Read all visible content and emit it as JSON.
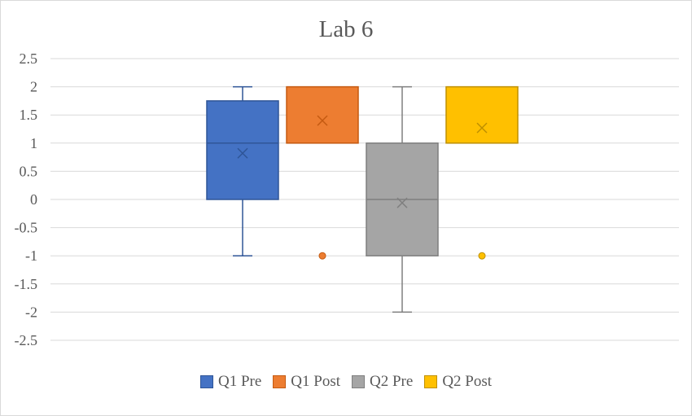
{
  "chart_data": {
    "type": "boxplot",
    "title": "Lab 6",
    "xlabel": "",
    "ylabel": "",
    "ylim": [
      -2.5,
      2.5
    ],
    "yticks": [
      2.5,
      2,
      1.5,
      1,
      0.5,
      0,
      -0.5,
      -1,
      -1.5,
      -2,
      -2.5
    ],
    "ytick_labels": [
      "2.5",
      "2",
      "1.5",
      "1",
      "0.5",
      "0",
      "-0.5",
      "-1",
      "-1.5",
      "-2",
      "-2.5"
    ],
    "grid": true,
    "legend_position": "bottom",
    "series": [
      {
        "name": "Q1 Pre",
        "color": "#4472c4",
        "border": "#2f5597",
        "q1": 0,
        "median": 1,
        "q3": 1.75,
        "whisker_low": -1,
        "whisker_high": 2,
        "mean": 0.82,
        "outliers": []
      },
      {
        "name": "Q1 Post",
        "color": "#ed7d31",
        "border": "#c55a11",
        "q1": 1,
        "median": 1,
        "q3": 2,
        "whisker_low": 1,
        "whisker_high": 2,
        "mean": 1.4,
        "outliers": [
          -1
        ]
      },
      {
        "name": "Q2 Pre",
        "color": "#a5a5a5",
        "border": "#7f7f7f",
        "q1": -1,
        "median": 0,
        "q3": 1,
        "whisker_low": -2,
        "whisker_high": 2,
        "mean": -0.06,
        "outliers": []
      },
      {
        "name": "Q2 Post",
        "color": "#ffc000",
        "border": "#bf9000",
        "q1": 1,
        "median": 1,
        "q3": 2,
        "whisker_low": 1,
        "whisker_high": 2,
        "mean": 1.27,
        "outliers": [
          -1
        ]
      }
    ]
  }
}
